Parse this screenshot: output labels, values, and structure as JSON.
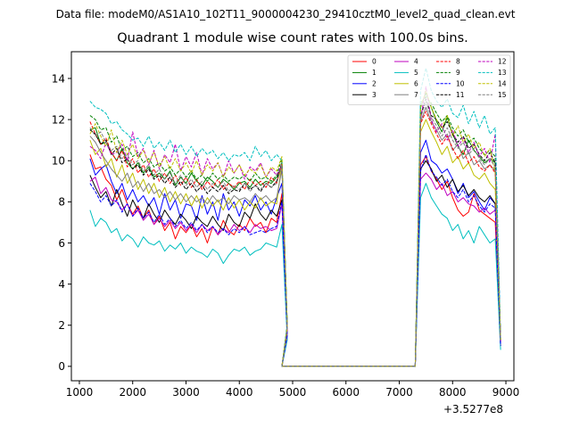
{
  "header": {
    "suptitle": "Data file: modeM0/AS1A10_102T11_9000004230_29410cztM0_level2_quad_clean.evt"
  },
  "chart_data": {
    "type": "line",
    "title": "Quadrant 1 module wise count rates with 100.0s bins.",
    "xlabel": "",
    "ylabel": "",
    "x_offset_label": "+3.5277e8",
    "xlim": [
      850,
      9150
    ],
    "ylim": [
      -0.7,
      15.3
    ],
    "xticks": [
      1000,
      2000,
      3000,
      4000,
      5000,
      6000,
      7000,
      8000,
      9000
    ],
    "xtick_labels": [
      "1000",
      "2000",
      "3000",
      "4000",
      "5000",
      "6000",
      "7000",
      "8000",
      "9000"
    ],
    "yticks": [
      0,
      2,
      4,
      6,
      8,
      10,
      12,
      14
    ],
    "ytick_labels": [
      "0",
      "2",
      "4",
      "6",
      "8",
      "10",
      "12",
      "14"
    ],
    "grid": false,
    "legend": {
      "placement": "top-right",
      "ncol": 4
    },
    "x_segment1": {
      "start": 1200,
      "step": 100,
      "count": 37
    },
    "x_gap": [
      4800,
      4900,
      5000,
      5100,
      5200,
      5300,
      5400,
      5500,
      5600,
      5700,
      5800,
      5900,
      6000,
      6100,
      6200,
      6300,
      6400,
      6500,
      6600,
      6700,
      6800,
      6900,
      7000,
      7100,
      7200,
      7300
    ],
    "x_segment2": {
      "start": 7400,
      "step": 100,
      "count": 15
    },
    "series": [
      {
        "name": "0",
        "color": "#ff0000",
        "dash": "solid",
        "drop": 1.6,
        "peak": 9.8,
        "seg1": [
          10.3,
          9.6,
          9.7,
          9.1,
          8.8,
          8.1,
          8.6,
          7.9,
          7.4,
          7.8,
          7.2,
          7.6,
          6.9,
          7.3,
          6.6,
          7.0,
          6.2,
          6.8,
          6.5,
          6.9,
          6.3,
          6.7,
          6.0,
          6.8,
          6.4,
          7.1,
          6.6,
          6.4,
          6.9,
          6.6,
          7.2,
          6.8,
          7.0,
          6.5,
          7.2,
          7.0,
          8.4
        ],
        "seg2": [
          10.2,
          9.5,
          9.1,
          8.6,
          9.0,
          8.2,
          7.6,
          7.3,
          7.5,
          8.4,
          7.6,
          7.4,
          7.2,
          7.0,
          1.0
        ]
      },
      {
        "name": "1",
        "color": "#008000",
        "dash": "solid",
        "drop": 2.0,
        "peak": 12.6,
        "seg1": [
          11.5,
          11.6,
          10.8,
          10.9,
          10.4,
          10.0,
          10.6,
          9.9,
          9.6,
          9.9,
          9.4,
          9.7,
          9.2,
          9.4,
          9.1,
          9.5,
          8.8,
          9.2,
          8.9,
          9.4,
          9.0,
          8.8,
          9.2,
          9.0,
          8.7,
          9.1,
          8.9,
          8.6,
          8.9,
          9.0,
          8.7,
          9.1,
          8.8,
          9.0,
          8.9,
          9.2,
          9.7
        ],
        "seg2": [
          13.3,
          12.6,
          11.9,
          11.4,
          12.1,
          11.3,
          10.7,
          10.3,
          11.0,
          10.5,
          10.2,
          9.9,
          10.1,
          9.9,
          1.3
        ]
      },
      {
        "name": "2",
        "color": "#0000ff",
        "dash": "solid",
        "drop": 1.7,
        "peak": 10.4,
        "seg1": [
          10.1,
          9.3,
          9.6,
          9.8,
          9.0,
          8.4,
          8.9,
          8.1,
          8.6,
          8.0,
          8.3,
          7.8,
          8.2,
          7.4,
          8.4,
          7.6,
          8.1,
          7.2,
          7.9,
          7.8,
          7.1,
          8.3,
          7.4,
          8.0,
          7.1,
          8.4,
          7.6,
          8.0,
          7.3,
          8.1,
          7.8,
          8.3,
          7.6,
          8.0,
          7.4,
          8.2,
          8.9
        ],
        "seg2": [
          11.0,
          10.0,
          9.8,
          9.4,
          9.6,
          9.1,
          8.4,
          8.9,
          8.2,
          8.5,
          8.0,
          7.6,
          8.2,
          7.9,
          1.1
        ]
      },
      {
        "name": "3",
        "color": "#000000",
        "dash": "solid",
        "drop": 1.6,
        "peak": 9.6,
        "seg1": [
          9.3,
          8.7,
          8.2,
          8.5,
          7.8,
          8.6,
          7.9,
          7.3,
          8.1,
          7.6,
          7.2,
          7.9,
          7.4,
          7.0,
          7.6,
          7.2,
          6.9,
          7.4,
          7.1,
          6.7,
          7.3,
          7.0,
          6.8,
          7.3,
          6.9,
          6.6,
          7.4,
          7.0,
          6.8,
          7.5,
          7.2,
          7.9,
          7.4,
          7.1,
          7.6,
          7.3,
          8.1
        ],
        "seg2": [
          10.0,
          9.6,
          9.0,
          9.3,
          8.7,
          9.1,
          8.5,
          8.8,
          8.3,
          8.6,
          8.2,
          8.0,
          8.3,
          7.9,
          1.0
        ]
      },
      {
        "name": "4",
        "color": "#bf00bf",
        "dash": "solid",
        "drop": 1.5,
        "peak": 9.1,
        "seg1": [
          9.0,
          9.2,
          8.4,
          8.7,
          8.1,
          8.0,
          7.6,
          7.9,
          7.3,
          7.6,
          7.1,
          7.4,
          6.9,
          7.2,
          6.8,
          7.1,
          6.7,
          7.0,
          6.6,
          6.9,
          6.5,
          6.9,
          6.6,
          6.8,
          6.4,
          6.7,
          6.5,
          6.9,
          6.6,
          6.8,
          6.5,
          6.9,
          6.7,
          6.8,
          6.6,
          6.7,
          7.9
        ],
        "seg2": [
          9.4,
          9.1,
          8.6,
          8.9,
          8.3,
          8.5,
          8.0,
          8.2,
          7.9,
          7.8,
          7.5,
          7.7,
          7.4,
          7.6,
          1.0
        ]
      },
      {
        "name": "5",
        "color": "#00bfbf",
        "dash": "solid",
        "drop": 1.3,
        "peak": 8.2,
        "seg1": [
          7.6,
          6.8,
          7.2,
          7.0,
          6.5,
          6.7,
          6.1,
          6.4,
          6.2,
          5.8,
          6.3,
          6.0,
          5.9,
          6.1,
          5.6,
          5.9,
          5.7,
          6.0,
          5.5,
          5.8,
          5.6,
          5.5,
          5.3,
          5.7,
          5.5,
          5.0,
          5.4,
          5.7,
          5.6,
          5.8,
          5.4,
          5.6,
          5.7,
          6.0,
          5.9,
          5.8,
          6.9
        ],
        "seg2": [
          8.9,
          8.2,
          7.8,
          7.4,
          7.2,
          6.6,
          6.9,
          6.2,
          6.6,
          6.0,
          6.8,
          6.4,
          6.0,
          6.2,
          0.8
        ]
      },
      {
        "name": "6",
        "color": "#bfbf00",
        "dash": "solid",
        "drop": 1.7,
        "peak": 11.4,
        "seg1": [
          11.0,
          10.3,
          10.6,
          9.7,
          10.1,
          9.2,
          9.8,
          8.9,
          9.4,
          8.6,
          9.1,
          8.4,
          8.9,
          8.2,
          8.7,
          8.0,
          8.5,
          7.9,
          8.4,
          7.8,
          8.3,
          7.7,
          8.2,
          7.8,
          8.1,
          7.6,
          8.2,
          7.7,
          8.1,
          7.6,
          8.0,
          7.7,
          8.2,
          7.8,
          8.0,
          7.9,
          10.0
        ],
        "seg2": [
          12.0,
          11.4,
          10.9,
          10.3,
          10.7,
          9.9,
          10.2,
          9.6,
          9.9,
          9.3,
          9.1,
          9.4,
          8.9,
          8.6,
          1.3
        ]
      },
      {
        "name": "7",
        "color": "#7f7f7f",
        "dash": "solid",
        "drop": 1.8,
        "peak": 11.9,
        "seg1": [
          11.2,
          10.9,
          10.4,
          10.0,
          9.6,
          9.3,
          9.0,
          9.4,
          8.7,
          9.0,
          8.5,
          8.9,
          8.4,
          8.6,
          8.2,
          8.5,
          8.1,
          8.4,
          8.0,
          8.3,
          8.0,
          8.2,
          7.9,
          8.3,
          8.0,
          8.2,
          7.9,
          8.3,
          8.1,
          8.2,
          8.0,
          8.4,
          8.1,
          8.3,
          8.0,
          8.2,
          9.6
        ],
        "seg2": [
          12.6,
          11.9,
          11.5,
          11.0,
          11.3,
          10.5,
          10.8,
          10.1,
          10.4,
          9.8,
          10.0,
          9.6,
          9.8,
          9.5,
          1.2
        ]
      },
      {
        "name": "8",
        "color": "#ff0000",
        "dash": "dashed",
        "drop": 1.8,
        "peak": 11.8,
        "seg1": [
          11.9,
          11.3,
          10.8,
          11.1,
          10.4,
          10.0,
          10.5,
          9.7,
          10.1,
          9.4,
          9.8,
          9.2,
          9.6,
          9.0,
          9.4,
          8.9,
          9.3,
          8.8,
          9.2,
          8.7,
          9.1,
          8.6,
          9.0,
          8.7,
          9.1,
          8.6,
          8.9,
          8.7,
          9.0,
          8.6,
          9.1,
          8.8,
          9.0,
          8.7,
          9.2,
          8.9,
          9.9
        ],
        "seg2": [
          12.4,
          11.8,
          11.3,
          10.8,
          11.2,
          10.6,
          10.1,
          10.5,
          9.9,
          10.2,
          9.7,
          9.5,
          9.8,
          9.4,
          1.2
        ]
      },
      {
        "name": "9",
        "color": "#008000",
        "dash": "dashed",
        "drop": 2.0,
        "peak": 12.8,
        "seg1": [
          12.2,
          12.0,
          11.5,
          11.6,
          10.9,
          11.2,
          10.5,
          10.7,
          10.2,
          10.4,
          9.9,
          10.1,
          9.7,
          9.9,
          9.5,
          9.7,
          9.3,
          9.6,
          9.2,
          9.5,
          9.1,
          9.3,
          9.0,
          9.4,
          9.1,
          9.3,
          9.0,
          9.2,
          9.1,
          9.3,
          9.0,
          9.4,
          9.1,
          9.2,
          9.0,
          9.3,
          10.1
        ],
        "seg2": [
          13.1,
          12.8,
          12.3,
          11.9,
          12.2,
          11.6,
          11.2,
          11.5,
          10.9,
          11.1,
          10.6,
          10.3,
          10.5,
          10.2,
          1.4
        ]
      },
      {
        "name": "10",
        "color": "#0000ff",
        "dash": "dashed",
        "drop": 1.5,
        "peak": 9.5,
        "seg1": [
          8.9,
          8.5,
          8.0,
          8.3,
          7.8,
          8.1,
          7.5,
          7.9,
          7.3,
          7.7,
          7.2,
          7.5,
          7.0,
          7.4,
          6.9,
          7.2,
          6.8,
          7.1,
          6.7,
          7.0,
          6.6,
          6.9,
          6.5,
          6.8,
          6.5,
          6.7,
          6.4,
          6.7,
          6.5,
          6.8,
          6.4,
          6.5,
          6.6,
          6.5,
          6.7,
          6.8,
          8.0
        ],
        "seg2": [
          10.3,
          9.5,
          9.2,
          8.8,
          9.1,
          8.5,
          8.2,
          8.6,
          8.0,
          8.3,
          7.8,
          7.5,
          7.9,
          7.7,
          1.0
        ]
      },
      {
        "name": "11",
        "color": "#000000",
        "dash": "dashed",
        "drop": 1.9,
        "peak": 12.2,
        "seg1": [
          11.5,
          11.3,
          10.8,
          11.0,
          10.3,
          10.6,
          9.9,
          10.1,
          9.6,
          9.8,
          9.3,
          9.6,
          9.1,
          9.3,
          8.9,
          9.2,
          8.7,
          9.0,
          8.6,
          8.9,
          8.5,
          8.8,
          8.4,
          8.7,
          8.5,
          8.8,
          8.4,
          8.6,
          8.5,
          8.9,
          8.6,
          8.8,
          8.5,
          8.9,
          8.7,
          9.0,
          9.9
        ],
        "seg2": [
          13.0,
          12.2,
          12.0,
          11.6,
          11.9,
          11.3,
          10.9,
          11.2,
          10.6,
          10.8,
          10.3,
          10.0,
          10.4,
          9.9,
          1.3
        ]
      },
      {
        "name": "12",
        "color": "#bf00bf",
        "dash": "dashed",
        "drop": 1.8,
        "peak": 12.0,
        "seg1": [
          10.7,
          10.5,
          10.1,
          10.9,
          10.3,
          10.4,
          10.8,
          10.0,
          11.4,
          10.2,
          10.6,
          9.8,
          10.5,
          9.6,
          10.3,
          9.9,
          10.8,
          9.5,
          10.2,
          9.7,
          10.4,
          9.3,
          10.1,
          9.6,
          9.9,
          9.2,
          10.0,
          9.4,
          9.8,
          9.1,
          9.7,
          9.5,
          9.9,
          9.2,
          9.6,
          9.3,
          9.8
        ],
        "seg2": [
          13.6,
          12.0,
          11.4,
          11.8,
          11.0,
          11.5,
          10.7,
          11.1,
          10.4,
          10.9,
          10.2,
          10.6,
          9.9,
          11.3,
          1.2
        ]
      },
      {
        "name": "13",
        "color": "#00bfbf",
        "dash": "dashed",
        "drop": 2.0,
        "peak": 13.4,
        "seg1": [
          12.9,
          12.6,
          12.5,
          12.3,
          11.8,
          11.9,
          11.5,
          11.3,
          11.0,
          11.1,
          10.7,
          11.2,
          10.6,
          10.9,
          10.5,
          11.0,
          10.4,
          10.8,
          10.3,
          10.7,
          10.2,
          10.6,
          10.3,
          10.5,
          10.1,
          10.4,
          10.0,
          10.3,
          10.2,
          10.4,
          10.0,
          10.7,
          10.2,
          10.5,
          10.0,
          10.3,
          10.0
        ],
        "seg2": [
          14.5,
          13.4,
          12.9,
          12.6,
          13.0,
          12.3,
          12.1,
          12.7,
          11.8,
          12.4,
          11.6,
          12.2,
          11.3,
          11.6,
          1.4
        ]
      },
      {
        "name": "14",
        "color": "#bfbf00",
        "dash": "dashed",
        "drop": 1.9,
        "peak": 12.6,
        "seg1": [
          11.3,
          11.8,
          11.2,
          10.7,
          11.5,
          10.4,
          11.0,
          10.3,
          10.8,
          10.1,
          10.5,
          9.9,
          10.4,
          9.7,
          10.2,
          9.6,
          10.1,
          9.5,
          9.9,
          9.4,
          10.0,
          9.3,
          9.8,
          9.5,
          9.9,
          9.2,
          9.7,
          9.4,
          9.8,
          9.3,
          9.6,
          9.4,
          9.8,
          9.2,
          9.7,
          9.5,
          10.2
        ],
        "seg2": [
          13.4,
          12.6,
          12.0,
          11.6,
          12.2,
          11.2,
          11.7,
          10.9,
          11.3,
          10.6,
          10.9,
          10.2,
          10.6,
          9.4,
          1.3
        ]
      },
      {
        "name": "15",
        "color": "#7f7f7f",
        "dash": "dashed",
        "drop": 1.9,
        "peak": 12.1,
        "seg1": [
          11.6,
          11.2,
          11.4,
          10.9,
          10.5,
          10.7,
          10.1,
          10.3,
          9.8,
          10.0,
          9.5,
          9.8,
          9.3,
          9.6,
          9.1,
          9.4,
          8.9,
          9.3,
          8.8,
          9.1,
          8.7,
          9.0,
          8.6,
          8.9,
          8.7,
          9.0,
          8.5,
          8.8,
          8.6,
          8.9,
          8.5,
          8.8,
          8.6,
          8.9,
          8.7,
          8.9,
          9.8
        ],
        "seg2": [
          12.9,
          12.1,
          11.7,
          11.2,
          11.6,
          11.0,
          10.6,
          10.9,
          10.3,
          10.6,
          10.1,
          9.8,
          10.1,
          9.7,
          1.3
        ]
      }
    ]
  }
}
